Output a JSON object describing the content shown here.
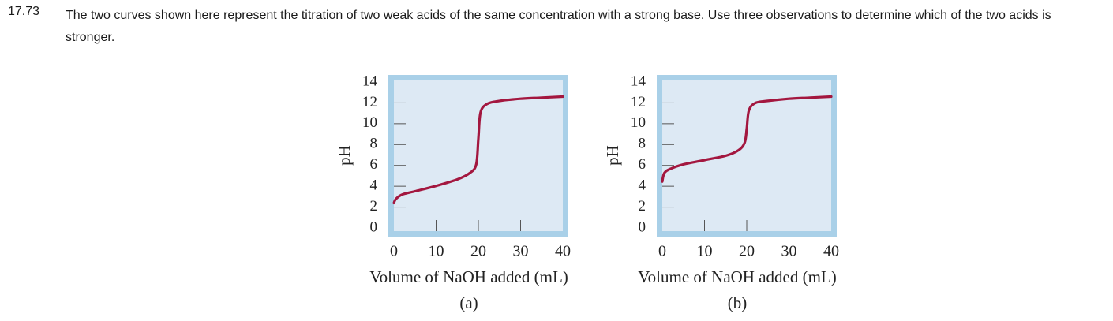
{
  "problem": {
    "number": "17.73",
    "text": "The two curves shown here represent the titration of two weak acids of the same concentration with a strong base. Use three observations to determine which of the two acids is stronger."
  },
  "colors": {
    "plot_fill": "#dde9f4",
    "frame": "#a9d0e8",
    "curve": "#a3173f",
    "tick": "#555555"
  },
  "chart_data": [
    {
      "type": "line",
      "panel_label": "(a)",
      "xlabel": "Volume of NaOH added (mL)",
      "ylabel": "pH",
      "xlim": [
        0,
        40
      ],
      "ylim": [
        0,
        14
      ],
      "x_ticks": [
        "0",
        "10",
        "20",
        "30",
        "40"
      ],
      "y_ticks": [
        "0",
        "2",
        "4",
        "6",
        "8",
        "10",
        "12",
        "14"
      ],
      "series": [
        {
          "name": "Weak acid (a)",
          "x": [
            0,
            0.5,
            2,
            5,
            10,
            15,
            18,
            19.5,
            20,
            20.5,
            22,
            25,
            30,
            35,
            40
          ],
          "y": [
            2.6,
            3.0,
            3.4,
            3.7,
            4.2,
            4.8,
            5.4,
            6.2,
            8.6,
            11.0,
            11.8,
            12.1,
            12.3,
            12.4,
            12.5
          ]
        }
      ]
    },
    {
      "type": "line",
      "panel_label": "(b)",
      "xlabel": "Volume of NaOH added (mL)",
      "ylabel": "pH",
      "xlim": [
        0,
        40
      ],
      "ylim": [
        0,
        14
      ],
      "x_ticks": [
        "0",
        "10",
        "20",
        "30",
        "40"
      ],
      "y_ticks": [
        "0",
        "2",
        "4",
        "6",
        "8",
        "10",
        "12",
        "14"
      ],
      "series": [
        {
          "name": "Weak acid (b)",
          "x": [
            0,
            0.5,
            2,
            5,
            10,
            15,
            18,
            19.5,
            20,
            20.5,
            22,
            25,
            30,
            35,
            40
          ],
          "y": [
            4.6,
            5.4,
            5.8,
            6.2,
            6.6,
            7.0,
            7.5,
            8.2,
            9.5,
            11.2,
            11.9,
            12.1,
            12.3,
            12.4,
            12.5
          ]
        }
      ]
    }
  ]
}
